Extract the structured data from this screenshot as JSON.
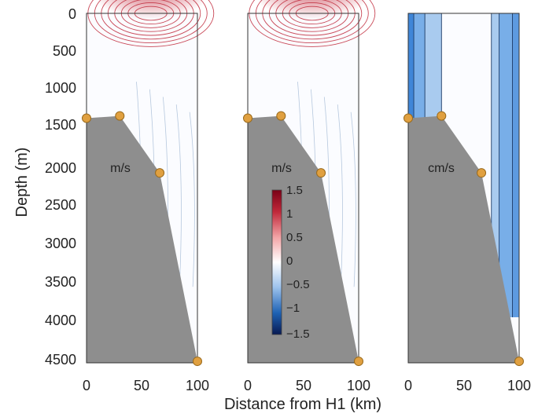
{
  "chart_data": {
    "type": "contour",
    "xlabel": "Distance from H1 (km)",
    "ylabel": "Depth (m)",
    "xlim": [
      0,
      100
    ],
    "ylim": [
      4600,
      0
    ],
    "y_ticks": [
      "0",
      "500",
      "1000",
      "1500",
      "2000",
      "2500",
      "3000",
      "3500",
      "4000",
      "4500"
    ],
    "x_ticks": [
      "0",
      "50",
      "100"
    ],
    "bathymetry_km_m": [
      [
        0,
        1380
      ],
      [
        30,
        1350
      ],
      [
        66,
        2100
      ],
      [
        100,
        4580
      ]
    ],
    "station_markers_km_m": [
      [
        0,
        1380
      ],
      [
        30,
        1350
      ],
      [
        66,
        2100
      ],
      [
        100,
        4580
      ]
    ],
    "panels": [
      {
        "unit": "m/s",
        "surface_max": 1.5
      },
      {
        "unit": "m/s",
        "surface_max": 1.5
      },
      {
        "unit": "cm/s"
      }
    ],
    "colorbar": {
      "ticks": [
        "1.5",
        "1",
        "0.5",
        "0",
        "−0.5",
        "−1",
        "−1.5"
      ],
      "range": [
        -1.5,
        1.5
      ]
    }
  },
  "colors": {
    "bathymetry": "#8e8e8e",
    "marker": "#e0a040",
    "positive": "#c0283a",
    "negative": "#1e62b4",
    "light_blue": "#78aee8"
  }
}
